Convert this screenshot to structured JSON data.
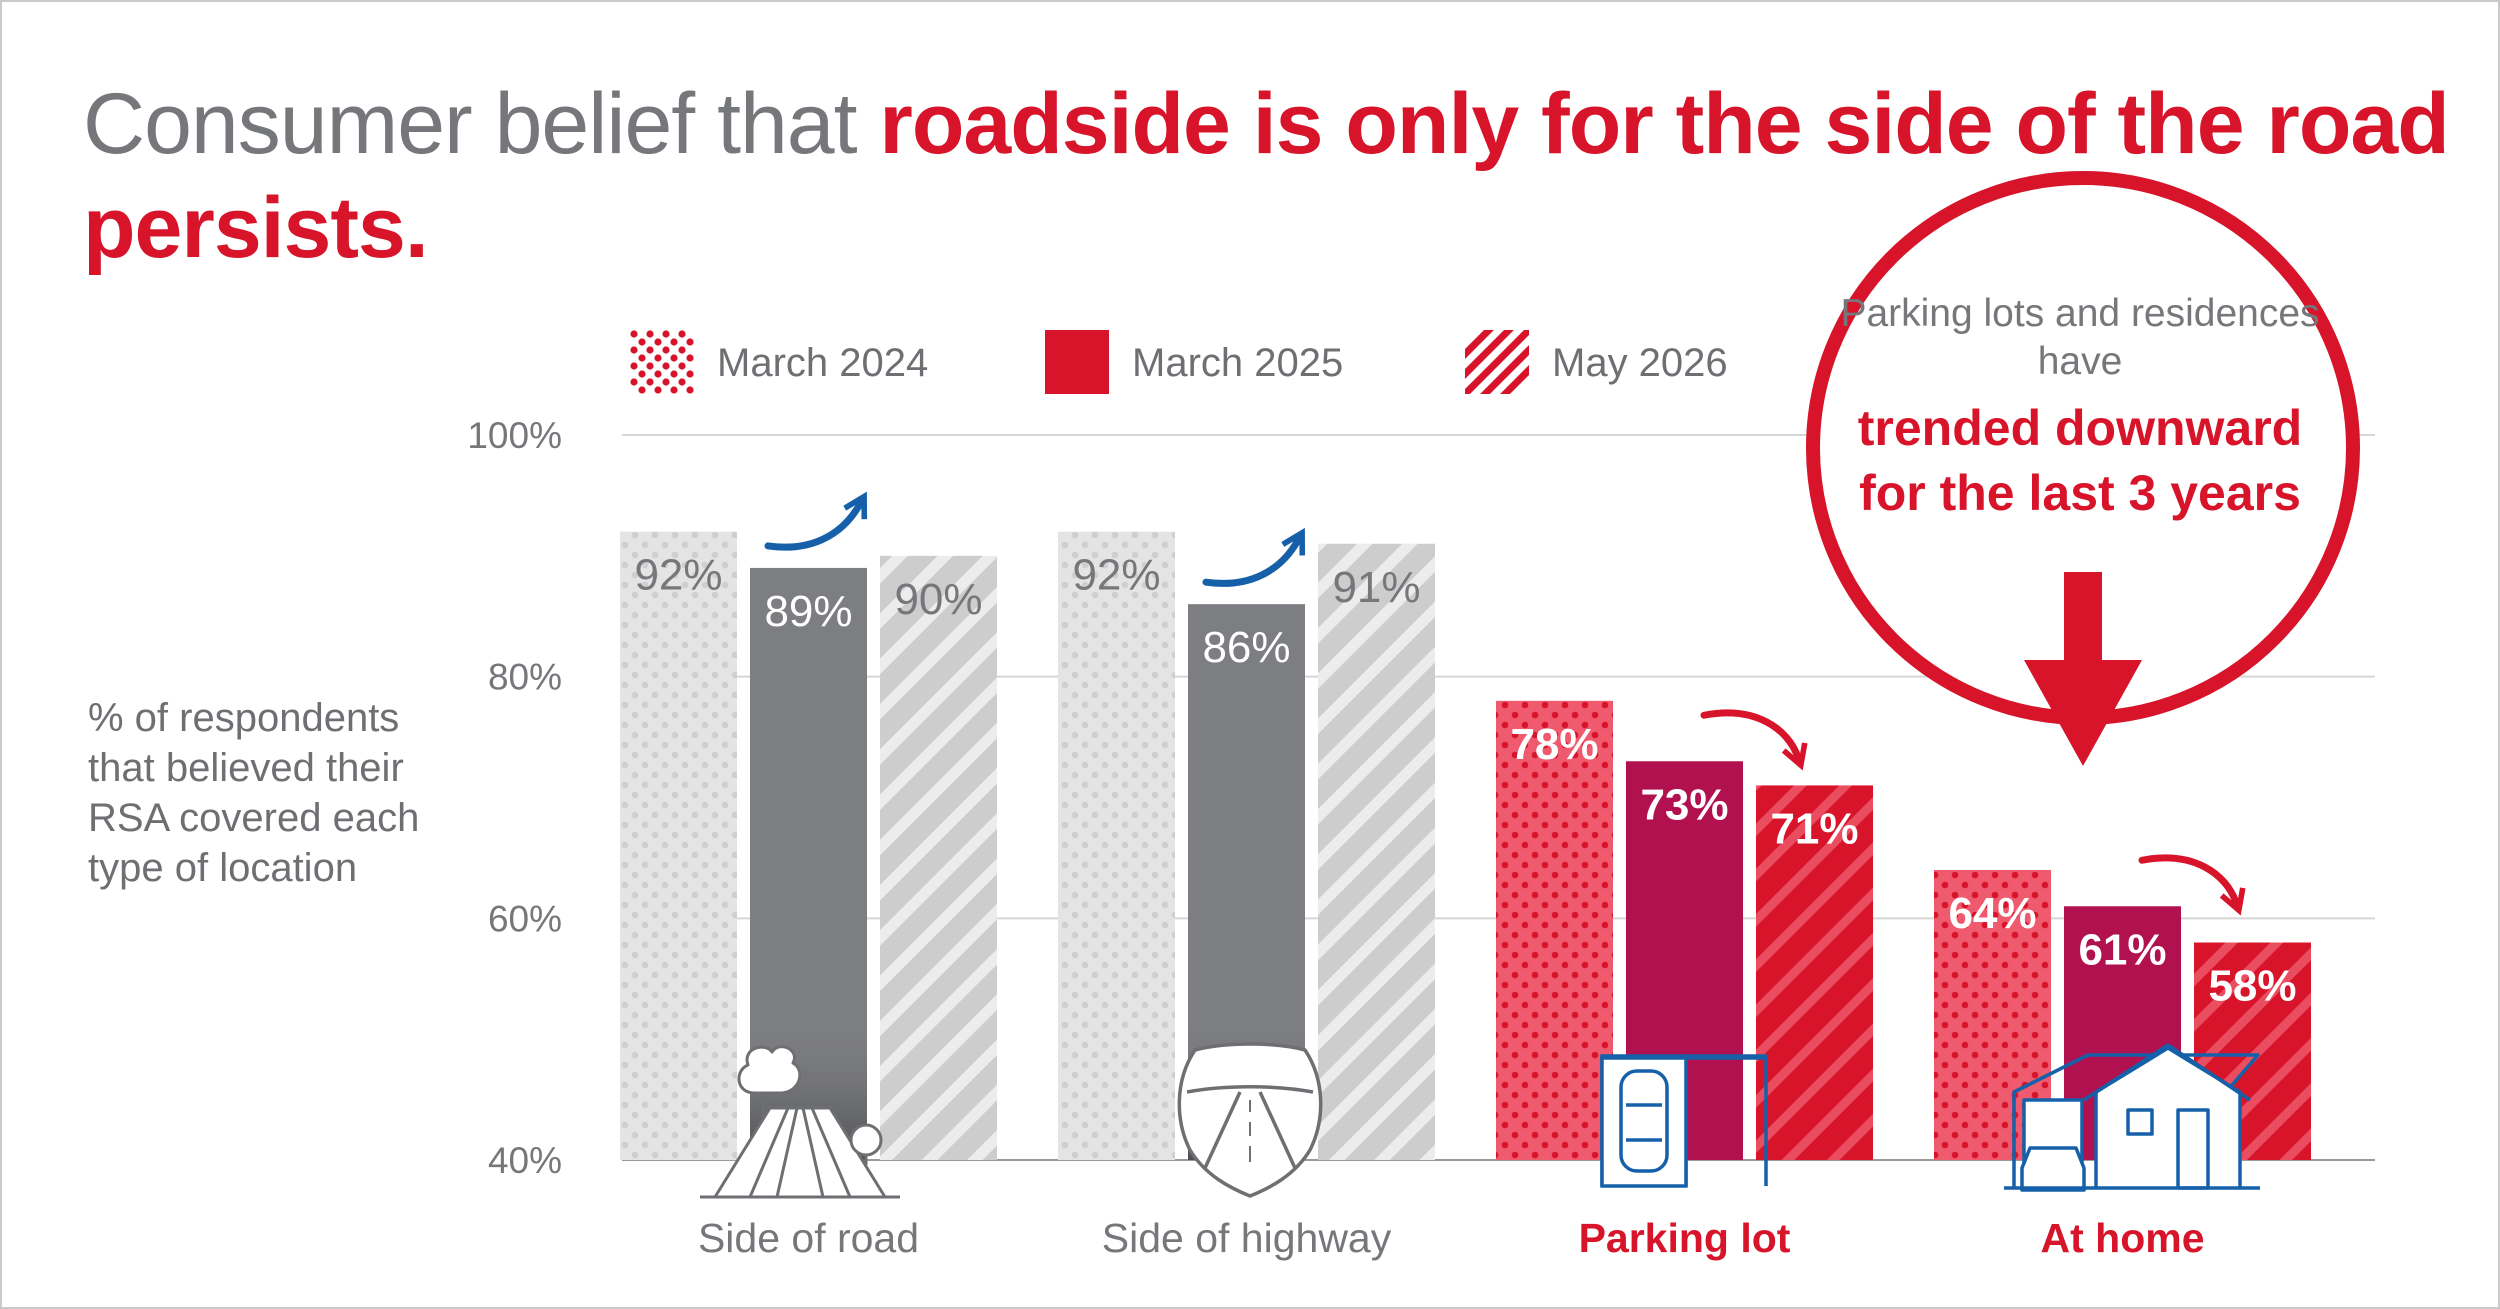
{
  "title": {
    "part1": "Consumer belief that ",
    "part2": "roadside is only for the side of the road persists."
  },
  "ylabel_text": "% of respondents that believed their RSA covered each type of location",
  "legend": [
    {
      "label": "March 2024",
      "pattern": "dots"
    },
    {
      "label": "March 2025",
      "pattern": "solid"
    },
    {
      "label": "May 2026",
      "pattern": "stripes"
    }
  ],
  "callout": {
    "line1": "Parking lots and residences have",
    "line2": "trended downward for the last 3 years"
  },
  "colors": {
    "red": "#d7142a",
    "red_light": "#ef5a6e",
    "maroon": "#b1124f",
    "gray_light": "#e3e3e3",
    "gray_dark": "#7d7e81",
    "gray_mid": "#cdcdcd",
    "blue": "#1560a9",
    "axis_text": "#75777a"
  },
  "chart_data": {
    "type": "bar",
    "categories": [
      "Side of road",
      "Side of highway",
      "Parking lot",
      "At home"
    ],
    "highlighted_categories": [
      "Parking lot",
      "At home"
    ],
    "series": [
      {
        "name": "March 2024",
        "values": [
          92,
          92,
          78,
          64
        ]
      },
      {
        "name": "March 2025",
        "values": [
          89,
          86,
          73,
          61
        ]
      },
      {
        "name": "May 2026",
        "values": [
          90,
          91,
          71,
          58
        ]
      }
    ],
    "value_labels": [
      [
        "92%",
        "89%",
        "90%"
      ],
      [
        "92%",
        "86%",
        "91%"
      ],
      [
        "78%",
        "73%",
        "71%"
      ],
      [
        "64%",
        "61%",
        "58%"
      ]
    ],
    "trend_arrows": [
      "up",
      "up",
      "down",
      "down"
    ],
    "icons": [
      "road-icon",
      "highway-shield-icon",
      "parking-space-icon",
      "house-icon"
    ],
    "yticks": [
      "40%",
      "60%",
      "80%",
      "100%"
    ],
    "ytick_values": [
      40,
      60,
      80,
      100
    ],
    "ylim": [
      40,
      100
    ],
    "grid": true
  }
}
